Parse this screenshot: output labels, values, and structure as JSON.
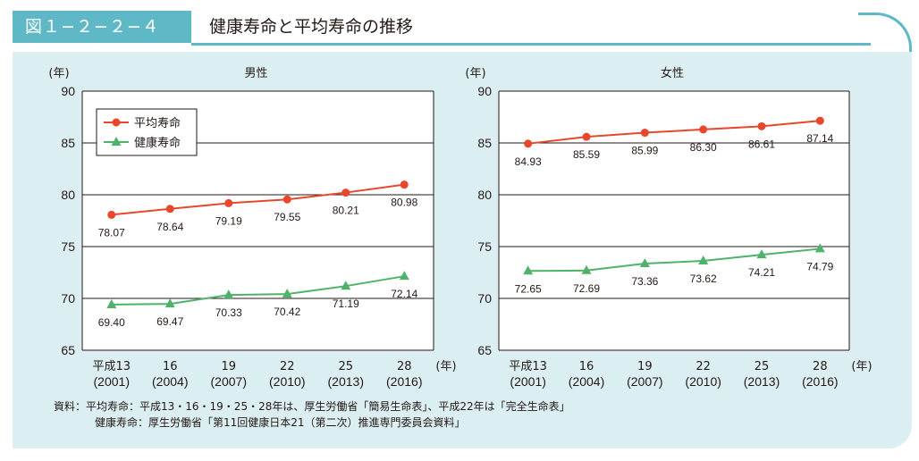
{
  "header": {
    "figure_number": "図１−２−２−４",
    "title": "健康寿命と平均寿命の推移"
  },
  "legend": {
    "average": "平均寿命",
    "healthy": "健康寿命"
  },
  "colors": {
    "average": "#e8472b",
    "healthy": "#4fb26a",
    "accent": "#5fb8c6",
    "panel": "#dbeef2"
  },
  "chart_data": [
    {
      "type": "line",
      "title": "男性",
      "ylabel": "(年)",
      "xlabel": "(年)",
      "ylim": [
        65,
        90
      ],
      "yticks": [
        65,
        70,
        75,
        80,
        85,
        90
      ],
      "grid": true,
      "legend_position": "top-left",
      "categories": [
        {
          "era": "平成13",
          "year": "(2001)"
        },
        {
          "era": "16",
          "year": "(2004)"
        },
        {
          "era": "19",
          "year": "(2007)"
        },
        {
          "era": "22",
          "year": "(2010)"
        },
        {
          "era": "25",
          "year": "(2013)"
        },
        {
          "era": "28",
          "year": "(2016)"
        }
      ],
      "series": [
        {
          "name": "平均寿命",
          "key": "average",
          "values": [
            78.07,
            78.64,
            79.19,
            79.55,
            80.21,
            80.98
          ]
        },
        {
          "name": "健康寿命",
          "key": "healthy",
          "values": [
            69.4,
            69.47,
            70.33,
            70.42,
            71.19,
            72.14
          ]
        }
      ]
    },
    {
      "type": "line",
      "title": "女性",
      "ylabel": "(年)",
      "xlabel": "(年)",
      "ylim": [
        65,
        90
      ],
      "yticks": [
        65,
        70,
        75,
        80,
        85,
        90
      ],
      "grid": true,
      "categories": [
        {
          "era": "平成13",
          "year": "(2001)"
        },
        {
          "era": "16",
          "year": "(2004)"
        },
        {
          "era": "19",
          "year": "(2007)"
        },
        {
          "era": "22",
          "year": "(2010)"
        },
        {
          "era": "25",
          "year": "(2013)"
        },
        {
          "era": "28",
          "year": "(2016)"
        }
      ],
      "series": [
        {
          "name": "平均寿命",
          "key": "average",
          "values": [
            84.93,
            85.59,
            85.99,
            86.3,
            86.61,
            87.14
          ]
        },
        {
          "name": "健康寿命",
          "key": "healthy",
          "values": [
            72.65,
            72.69,
            73.36,
            73.62,
            74.21,
            74.79
          ]
        }
      ]
    }
  ],
  "source": {
    "line1": "資料：平均寿命：平成13・16・19・25・28年は、厚生労働省「簡易生命表」、平成22年は「完全生命表」",
    "line2": "健康寿命：厚生労働省「第11回健康日本21（第二次）推進専門委員会資料」"
  }
}
